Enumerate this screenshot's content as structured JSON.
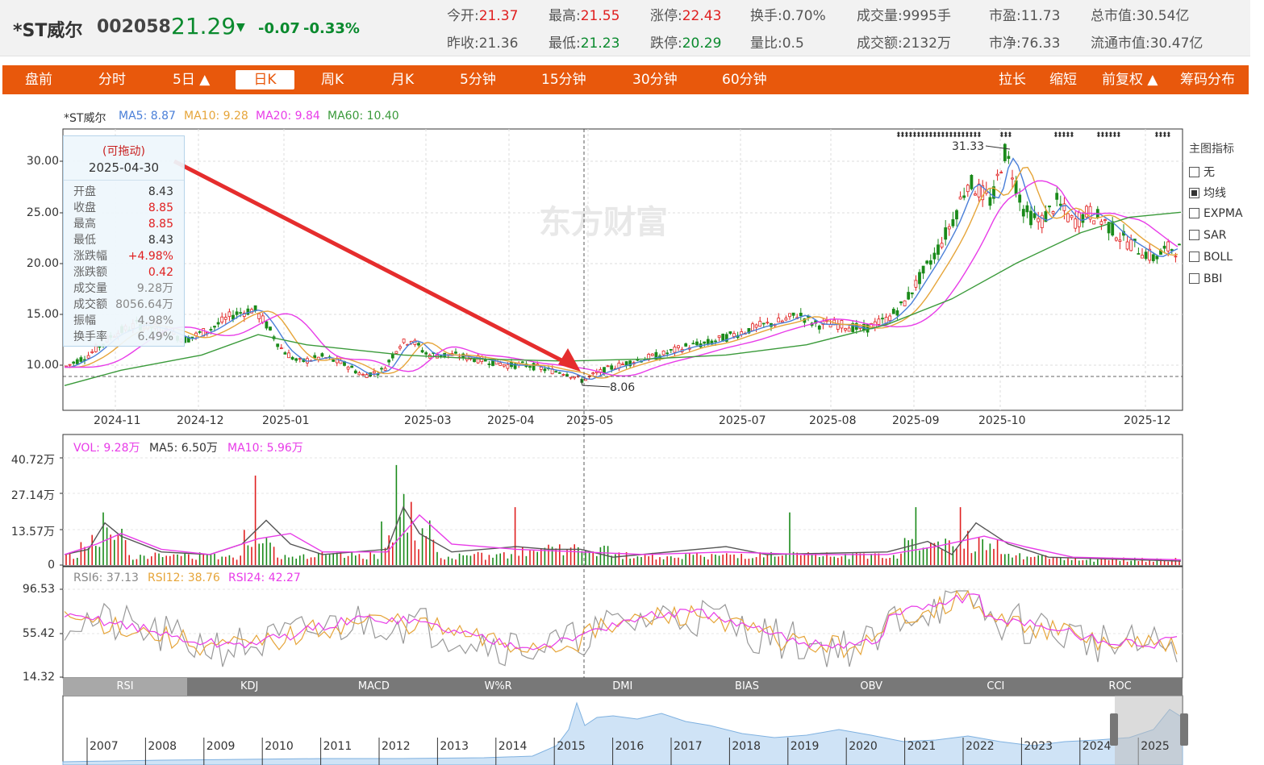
{
  "stock": {
    "name": "*ST威尔",
    "code": "002058",
    "price": "21.29",
    "change": "-0.07",
    "change_pct": "-0.33%",
    "arrow": "▼"
  },
  "quote": [
    {
      "label": "今开:",
      "value": "21.37",
      "cls": "up"
    },
    {
      "label": "最高:",
      "value": "21.55",
      "cls": "up"
    },
    {
      "label": "涨停:",
      "value": "22.43",
      "cls": "up"
    },
    {
      "label": "换手:",
      "value": "0.70%",
      "cls": ""
    },
    {
      "label": "成交量:",
      "value": "9995手",
      "cls": ""
    },
    {
      "label": "市盈:",
      "value": "11.73",
      "cls": ""
    },
    {
      "label": "总市值:",
      "value": "30.54亿",
      "cls": ""
    },
    {
      "label": "昨收:",
      "value": "21.36",
      "cls": ""
    },
    {
      "label": "最低:",
      "value": "21.23",
      "cls": "dn"
    },
    {
      "label": "跌停:",
      "value": "20.29",
      "cls": "dn"
    },
    {
      "label": "量比:",
      "value": "0.5",
      "cls": ""
    },
    {
      "label": "成交额:",
      "value": "2132万",
      "cls": ""
    },
    {
      "label": "市净:",
      "value": "76.33",
      "cls": ""
    },
    {
      "label": "流通市值:",
      "value": "30.47亿",
      "cls": ""
    }
  ],
  "toolbar": {
    "left": [
      "盘前",
      "分时",
      "5日 ▲",
      "日K",
      "周K",
      "月K",
      "5分钟",
      "15分钟",
      "30分钟",
      "60分钟"
    ],
    "active": "日K",
    "right": [
      "拉长",
      "缩短",
      "前复权 ▲",
      "筹码分布"
    ]
  },
  "ma_legend": {
    "name": "*ST威尔",
    "ma5": "MA5: 8.87",
    "ma10": "MA10: 9.28",
    "ma20": "MA20: 9.84",
    "ma60": "MA60: 10.40"
  },
  "colors": {
    "ma5": "#4a7fd8",
    "ma10": "#e6a53a",
    "ma20": "#e83ce8",
    "ma60": "#3a9a3a",
    "up": "#e02020",
    "down": "#1a8a1a",
    "bar": "#e8580c"
  },
  "tooltip": {
    "drag": "(可拖动)",
    "date": "2025-04-30",
    "rows": [
      {
        "k": "开盘",
        "v": "8.43",
        "c": "#333"
      },
      {
        "k": "收盘",
        "v": "8.85",
        "c": "#e02020"
      },
      {
        "k": "最高",
        "v": "8.85",
        "c": "#e02020"
      },
      {
        "k": "最低",
        "v": "8.43",
        "c": "#333"
      },
      {
        "k": "涨跌幅",
        "v": "+4.98%",
        "c": "#e02020"
      },
      {
        "k": "涨跌额",
        "v": "0.42",
        "c": "#e02020"
      },
      {
        "k": "成交量",
        "v": "9.28万",
        "c": "#888"
      },
      {
        "k": "成交额",
        "v": "8056.64万",
        "c": "#888"
      },
      {
        "k": "振幅",
        "v": "4.98%",
        "c": "#888"
      },
      {
        "k": "换手率",
        "v": "6.49%",
        "c": "#888"
      }
    ]
  },
  "price_axis": [
    "30.00",
    "25.00",
    "20.00",
    "15.00",
    "10.00"
  ],
  "date_axis": [
    "2024-11",
    "2024-12",
    "2025-01",
    "2025-03",
    "2025-04",
    "2025-05",
    "2025-07",
    "2025-08",
    "2025-09",
    "2025-10",
    "2025-12"
  ],
  "annotations": {
    "high": "31.33",
    "low": "8.06"
  },
  "watermark": "东方财富",
  "side_panel": {
    "title": "主图指标",
    "options": [
      "无",
      "均线",
      "EXPMA",
      "SAR",
      "BOLL",
      "BBI"
    ],
    "checked": "均线"
  },
  "volume": {
    "legend_vol": "VOL: 9.28万",
    "legend_ma5": "MA5: 6.50万",
    "legend_ma10": "MA10: 5.96万",
    "axis": [
      "40.72万",
      "27.14万",
      "13.57万",
      "0"
    ]
  },
  "rsi": {
    "legend_6": "RSI6: 37.13",
    "legend_12": "RSI12: 38.76",
    "legend_24": "RSI24: 42.27",
    "axis": [
      "96.53",
      "55.42",
      "14.32"
    ]
  },
  "indicator_tabs": [
    "RSI",
    "KDJ",
    "MACD",
    "W%R",
    "DMI",
    "BIAS",
    "OBV",
    "CCI",
    "ROC"
  ],
  "active_tab": "RSI",
  "navigator_years": [
    "2007",
    "2008",
    "2009",
    "2010",
    "2011",
    "2012",
    "2013",
    "2014",
    "2015",
    "2016",
    "2017",
    "2018",
    "2019",
    "2020",
    "2021",
    "2022",
    "2023",
    "2024",
    "2025"
  ]
}
